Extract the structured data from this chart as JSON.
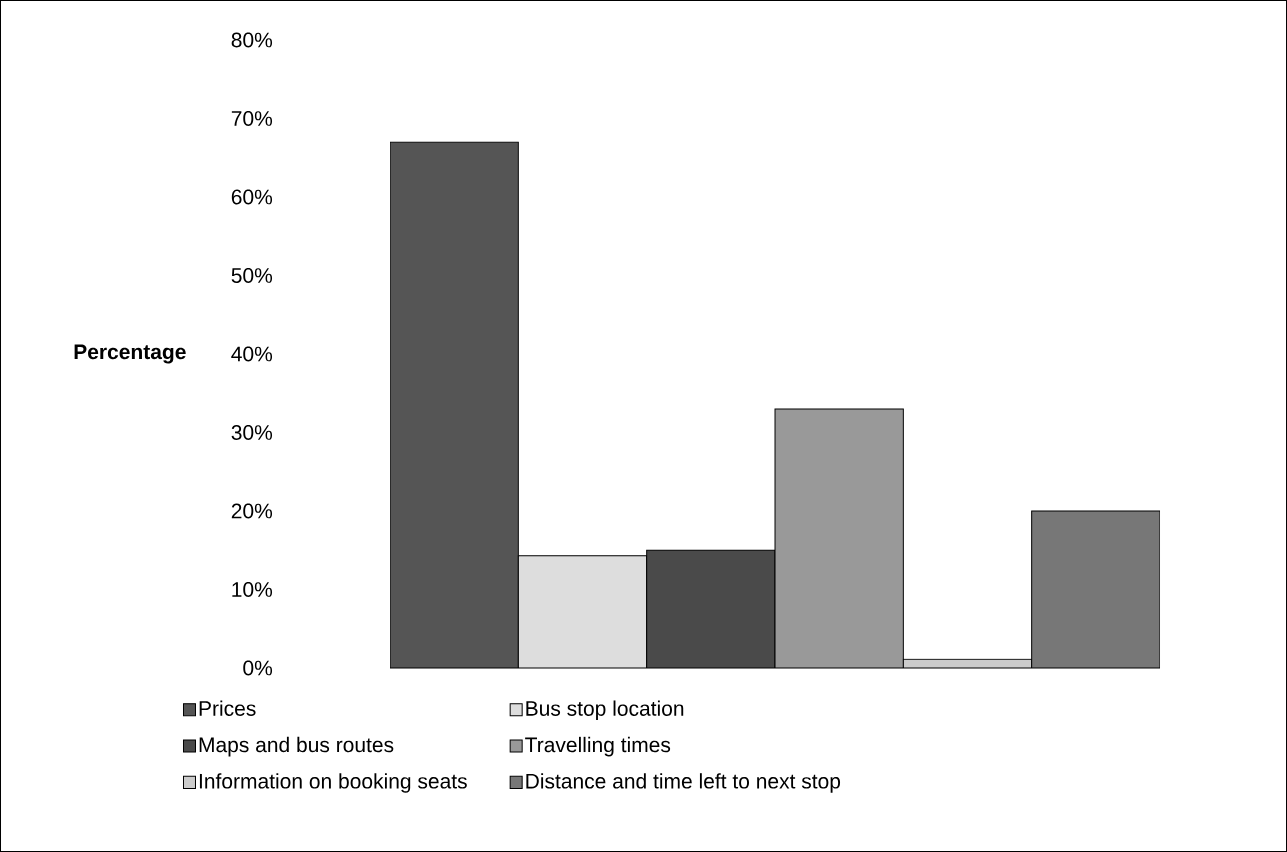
{
  "chart_data": {
    "type": "bar",
    "ylabel": "Percentage",
    "categories": [
      null
    ],
    "series": [
      {
        "name": "Prices",
        "color": "#555555",
        "values": [
          67
        ]
      },
      {
        "name": "Bus stop location",
        "color": "#dddddd",
        "values": [
          14.3
        ]
      },
      {
        "name": "Maps and bus routes",
        "color": "#4a4a4a",
        "values": [
          15
        ]
      },
      {
        "name": "Travelling times",
        "color": "#999999",
        "values": [
          33
        ]
      },
      {
        "name": "Information on booking seats",
        "color": "#cccccc",
        "values": [
          1.1
        ]
      },
      {
        "name": "Distance and time left to next stop",
        "color": "#777777",
        "values": [
          20
        ]
      }
    ],
    "ylim": [
      0,
      80
    ],
    "yticks": [
      {
        "value": 0,
        "label": "0%"
      },
      {
        "value": 10,
        "label": "10%"
      },
      {
        "value": 20,
        "label": "20%"
      },
      {
        "value": 30,
        "label": "30%"
      },
      {
        "value": 40,
        "label": "40%"
      },
      {
        "value": 50,
        "label": "50%"
      },
      {
        "value": 60,
        "label": "60%"
      },
      {
        "value": 70,
        "label": "70%"
      },
      {
        "value": 80,
        "label": "80%"
      }
    ],
    "grid": false,
    "legend": "bottom",
    "tick_labels": "y"
  }
}
